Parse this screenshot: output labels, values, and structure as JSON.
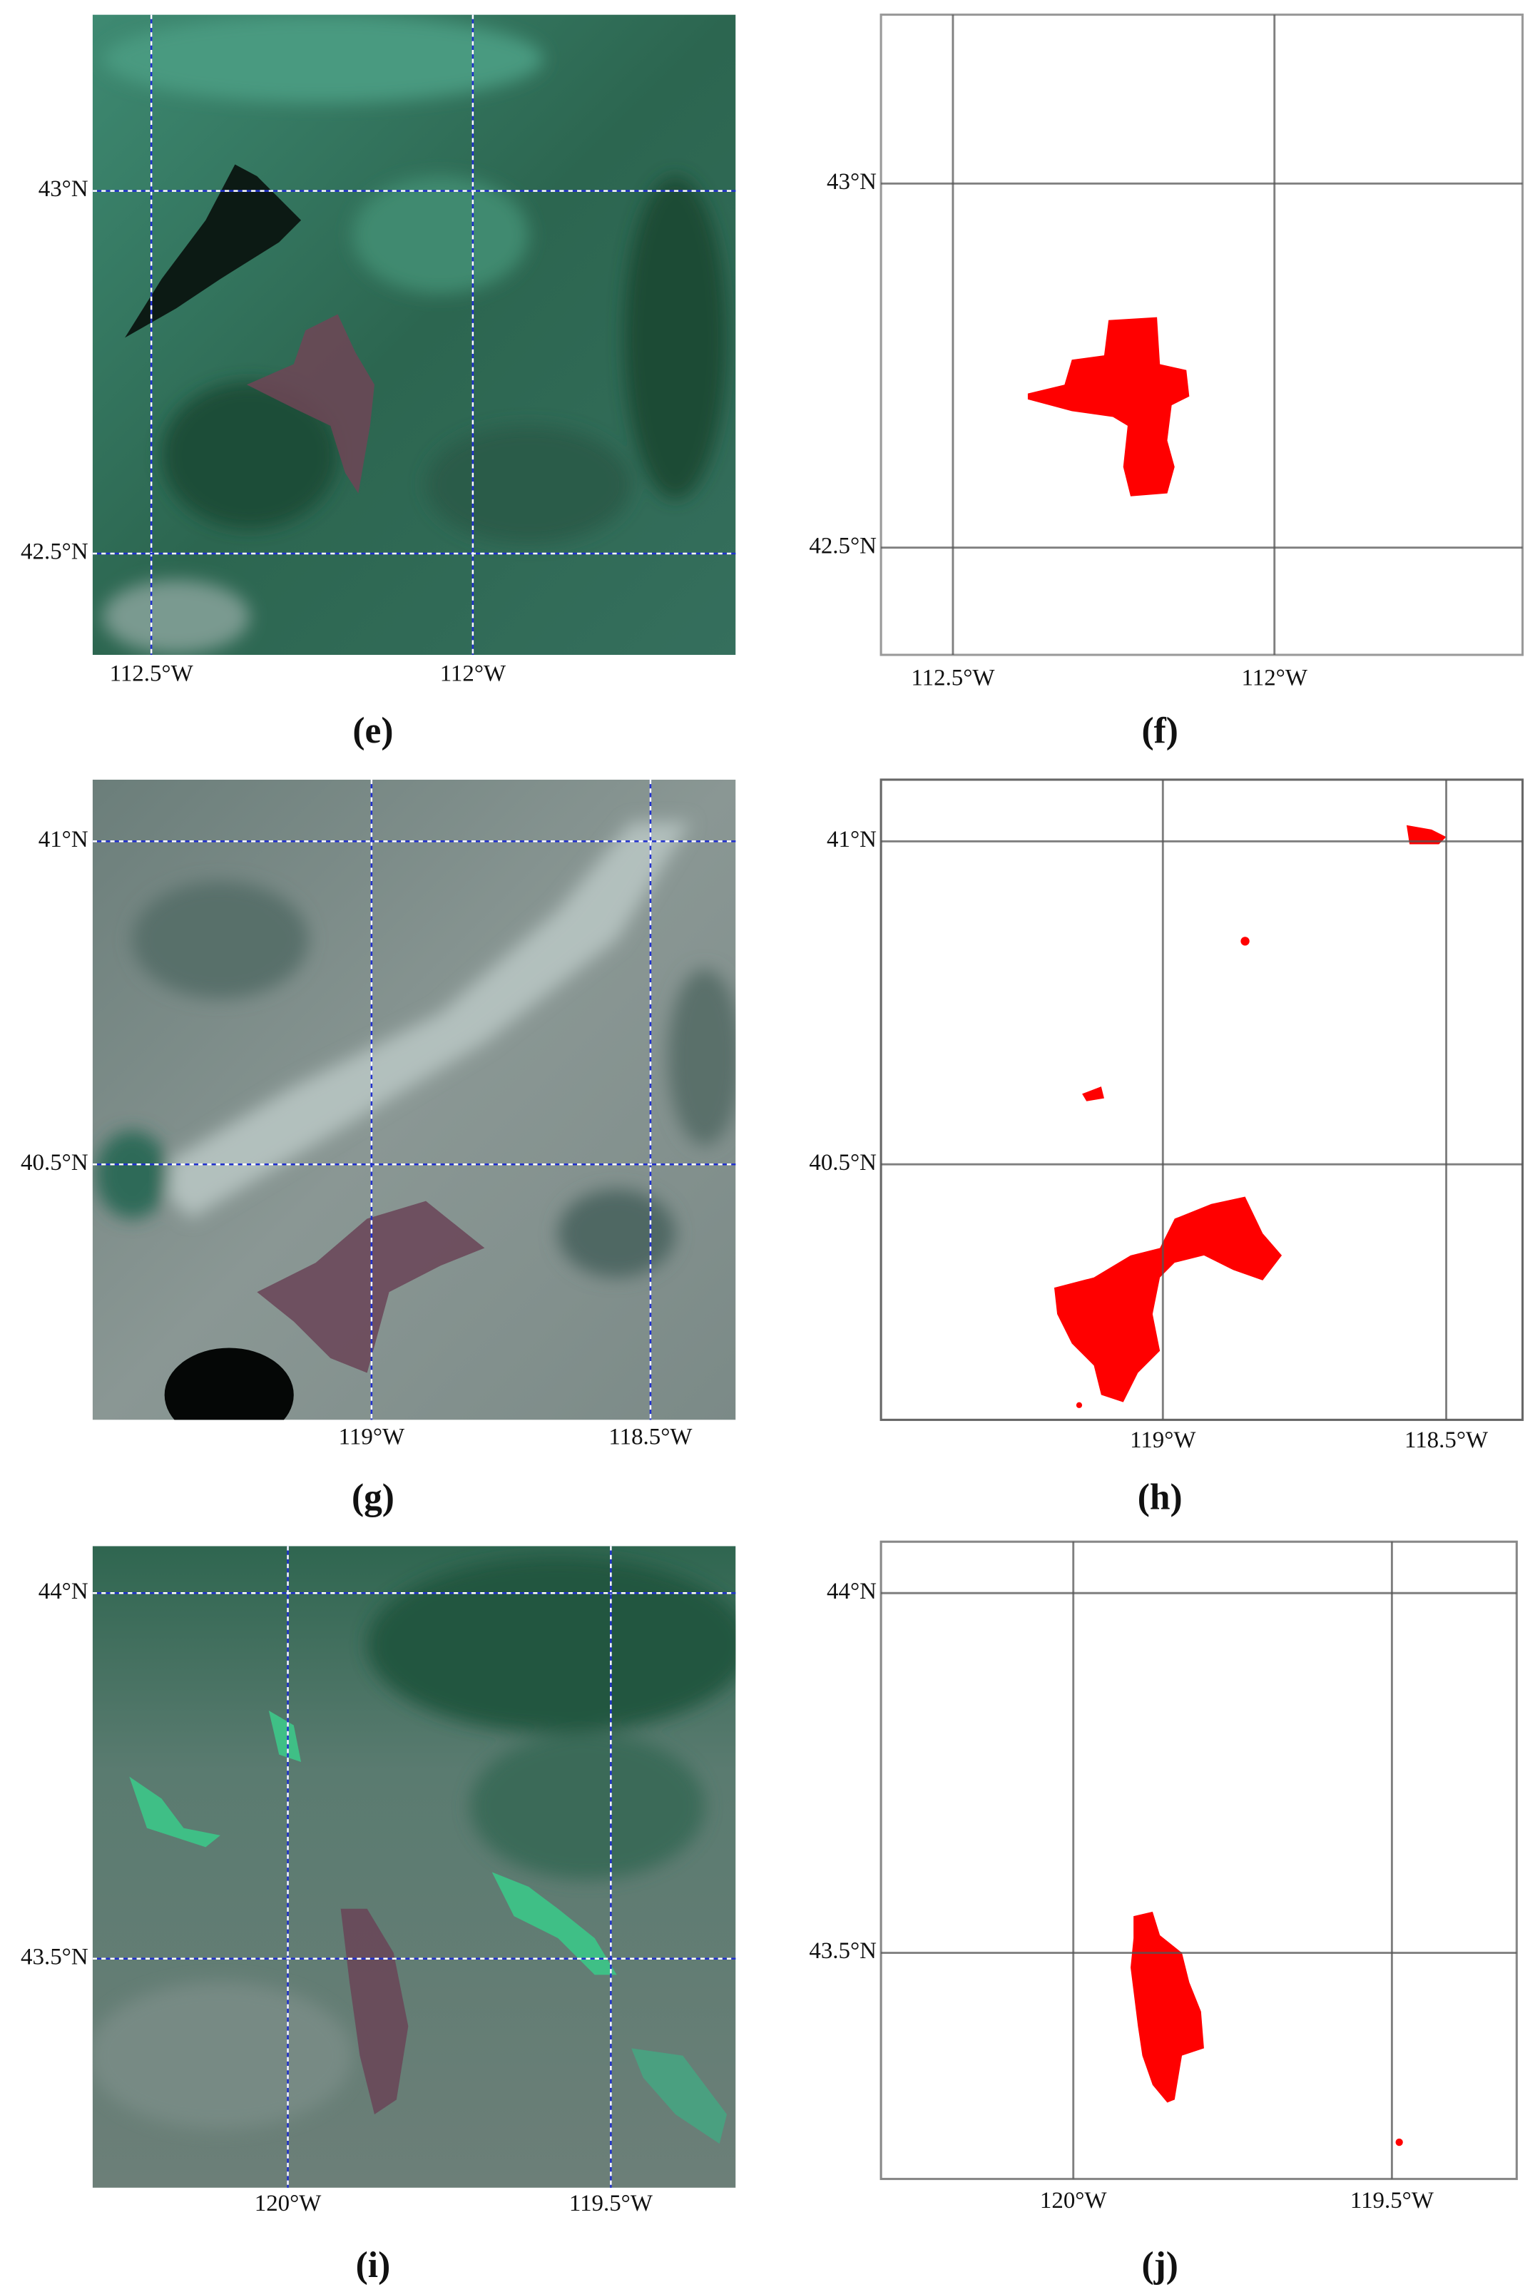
{
  "panels": [
    {
      "caption": "(e)",
      "lat_labels": [
        "43°N",
        "42.5°N"
      ],
      "lon_labels": [
        "112.5°W",
        "112°W"
      ]
    },
    {
      "caption": "(f)",
      "lat_labels": [
        "43°N",
        "42.5°N"
      ],
      "lon_labels": [
        "112.5°W",
        "112°W"
      ]
    },
    {
      "caption": "(g)",
      "lat_labels": [
        "41°N",
        "40.5°N"
      ],
      "lon_labels": [
        "119°W",
        "118.5°W"
      ]
    },
    {
      "caption": "(h)",
      "lat_labels": [
        "41°N",
        "40.5°N"
      ],
      "lon_labels": [
        "119°W",
        "118.5°W"
      ]
    },
    {
      "caption": "(i)",
      "lat_labels": [
        "44°N",
        "43.5°N"
      ],
      "lon_labels": [
        "120°W",
        "119.5°W"
      ]
    },
    {
      "caption": "(j)",
      "lat_labels": [
        "44°N",
        "43.5°N"
      ],
      "lon_labels": [
        "120°W",
        "119.5°W"
      ]
    }
  ]
}
